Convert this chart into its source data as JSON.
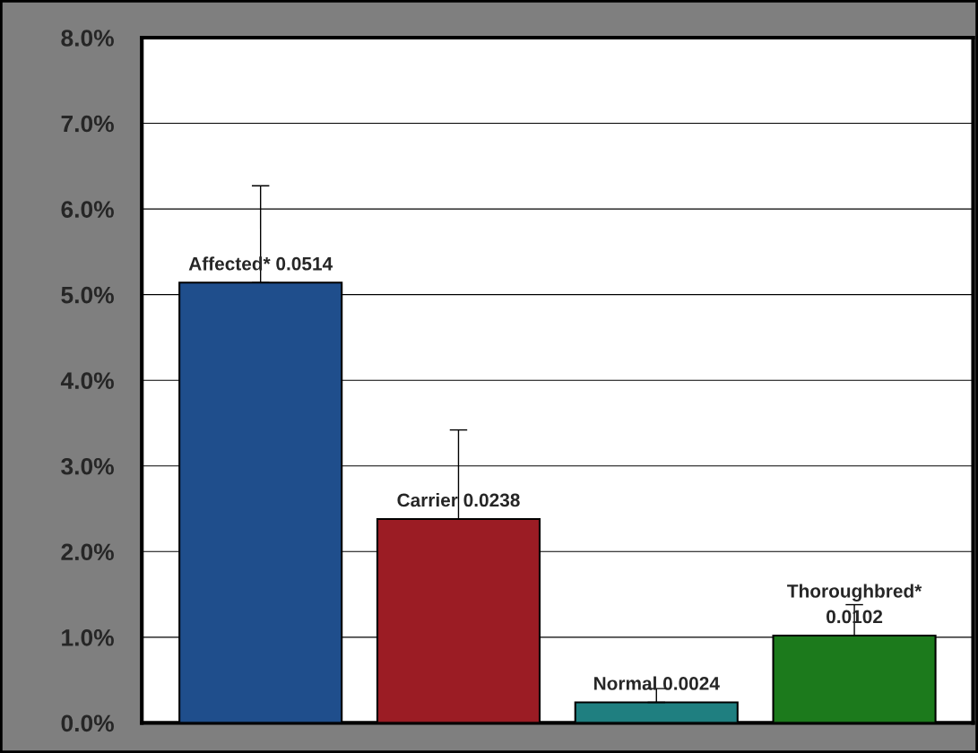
{
  "chart_data": {
    "type": "bar",
    "categories": [
      null,
      null,
      null,
      null
    ],
    "values": [
      0.0514,
      0.0238,
      0.0024,
      0.0102
    ],
    "colors": [
      "#1f4e8c",
      "#9b1c24",
      "#1f7f80",
      "#1c7a1c"
    ],
    "errors": [
      [
        0.0514,
        0.0627
      ],
      [
        0.0238,
        0.0342
      ],
      [
        0.0024,
        0.004
      ],
      [
        0.0102,
        0.0138
      ]
    ],
    "value_labels": [
      "Affected* 0.0514",
      "Carrier 0.0238",
      "Normal 0.0024",
      "Thoroughbred*\n0.0102"
    ],
    "ylim": [
      0,
      0.08
    ],
    "yticks": [
      {
        "value": 0,
        "label": "0.0%"
      },
      {
        "value": 0.01,
        "label": "1.0%"
      },
      {
        "value": 0.02,
        "label": "2.0%"
      },
      {
        "value": 0.03,
        "label": "3.0%"
      },
      {
        "value": 0.04,
        "label": "4.0%"
      },
      {
        "value": 0.05,
        "label": "5.0%"
      },
      {
        "value": 0.06,
        "label": "6.0%"
      },
      {
        "value": 0.07,
        "label": "7.0%"
      },
      {
        "value": 0.08,
        "label": "8.0%"
      }
    ],
    "grid": "y"
  }
}
